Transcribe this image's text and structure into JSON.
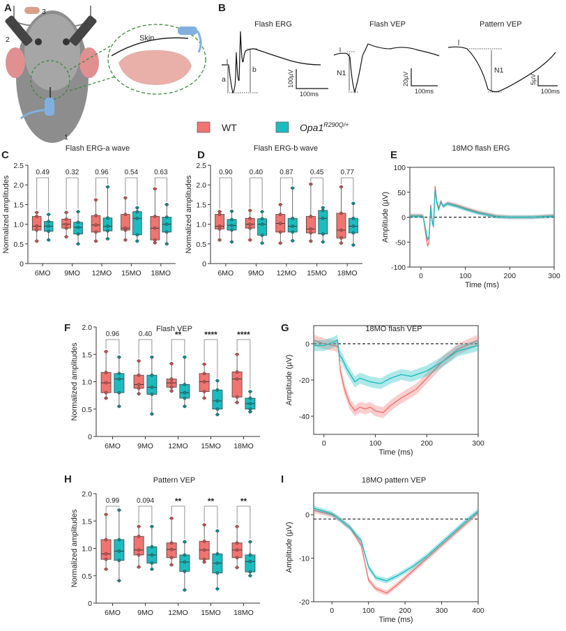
{
  "colors": {
    "wt": "#f07470",
    "opa": "#1bbcbf",
    "wt_dark": "#c0504d",
    "opa_dark": "#0d8a8c"
  },
  "legend": {
    "wt": "WT",
    "opa_base": "Opa1",
    "opa_sup": "R290Q/+"
  },
  "panel_letters": [
    "A",
    "B",
    "C",
    "D",
    "E",
    "F",
    "G",
    "H",
    "I"
  ],
  "panel_a": {
    "labels": [
      "1",
      "2",
      "3"
    ],
    "skin_label": "Skin"
  },
  "panel_b": {
    "traces": [
      {
        "title": "Flash ERG",
        "labels": [
          "a",
          "b"
        ],
        "scale_y": "100µV",
        "scale_x": "100ms"
      },
      {
        "title": "Flash VEP",
        "labels": [
          "N1"
        ],
        "scale_y": "20µV",
        "scale_x": "100ms"
      },
      {
        "title": "Pattern VEP",
        "labels": [
          "N1"
        ],
        "scale_y": "5µV",
        "scale_x": "100ms"
      }
    ]
  },
  "chart_data": [
    {
      "id": "C",
      "type": "box",
      "title": "Flash ERG-a wave",
      "ylabel": "Normalized amplitudes",
      "ylim": [
        0,
        2.5
      ],
      "yticks": [
        "0",
        "0.5",
        "1.0",
        "1.5",
        "2.0",
        "2.5"
      ],
      "categories": [
        "6MO",
        "9MO",
        "12MO",
        "15MO",
        "18MO"
      ],
      "pvalues": [
        "0.49",
        "0.32",
        "0.96",
        "0.54",
        "0.63"
      ],
      "series": [
        {
          "name": "WT",
          "boxes": [
            [
              0.57,
              0.85,
              0.95,
              1.2,
              1.3
            ],
            [
              0.68,
              0.9,
              1.0,
              1.13,
              1.3
            ],
            [
              0.57,
              0.8,
              0.98,
              1.22,
              1.62
            ],
            [
              0.6,
              0.85,
              0.9,
              1.25,
              1.67
            ],
            [
              0.53,
              0.6,
              0.9,
              1.2,
              1.9
            ]
          ]
        },
        {
          "name": "Opa1 R290Q/+",
          "boxes": [
            [
              0.6,
              0.82,
              0.95,
              1.07,
              1.25
            ],
            [
              0.5,
              0.75,
              0.92,
              1.05,
              1.32
            ],
            [
              0.63,
              0.83,
              0.95,
              1.16,
              1.95
            ],
            [
              0.57,
              0.73,
              1.15,
              1.32,
              1.42
            ],
            [
              0.5,
              0.8,
              1.0,
              1.18,
              1.5
            ]
          ]
        }
      ]
    },
    {
      "id": "D",
      "type": "box",
      "title": "Flash ERG-b wave",
      "ylabel": "Normalized amplitudes",
      "ylim": [
        0,
        2.5
      ],
      "yticks": [
        "0",
        "0.5",
        "1.0",
        "1.5",
        "2.0",
        "2.5"
      ],
      "categories": [
        "6MO",
        "9MO",
        "12MO",
        "15MO",
        "18MO"
      ],
      "pvalues": [
        "0.90",
        "0.40",
        "0.87",
        "0.45",
        "0.77"
      ],
      "series": [
        {
          "name": "WT",
          "boxes": [
            [
              0.6,
              0.88,
              0.95,
              1.25,
              1.32
            ],
            [
              0.6,
              0.9,
              1.0,
              1.15,
              1.35
            ],
            [
              0.52,
              0.8,
              1.02,
              1.25,
              1.5
            ],
            [
              0.57,
              0.78,
              0.88,
              1.2,
              2.02
            ],
            [
              0.52,
              0.65,
              0.85,
              1.28,
              1.95
            ]
          ]
        },
        {
          "name": "Opa1 R290Q/+",
          "boxes": [
            [
              0.55,
              0.85,
              0.97,
              1.12,
              1.33
            ],
            [
              0.52,
              0.72,
              1.0,
              1.14,
              1.32
            ],
            [
              0.58,
              0.8,
              0.95,
              1.15,
              1.92
            ],
            [
              0.55,
              0.75,
              1.15,
              1.35,
              1.42
            ],
            [
              0.47,
              0.78,
              0.95,
              1.15,
              1.53
            ]
          ]
        }
      ]
    },
    {
      "id": "E",
      "type": "line",
      "title": "18MO flash ERG",
      "xlabel": "Time (ms)",
      "ylabel": "Amplitude (µV)",
      "xlim": [
        -25,
        300
      ],
      "ylim": [
        -100,
        100
      ],
      "xticks": [
        0,
        100,
        200,
        300
      ],
      "yticks": [
        -100,
        -50,
        0,
        50,
        100
      ],
      "baseline": 0,
      "series": [
        {
          "name": "WT",
          "band": 4,
          "points": [
            [
              -25,
              3
            ],
            [
              0,
              3
            ],
            [
              5,
              2
            ],
            [
              10,
              -30
            ],
            [
              15,
              -58
            ],
            [
              18,
              -50
            ],
            [
              22,
              25
            ],
            [
              25,
              -5
            ],
            [
              28,
              -20
            ],
            [
              32,
              62
            ],
            [
              36,
              30
            ],
            [
              40,
              18
            ],
            [
              45,
              32
            ],
            [
              50,
              22
            ],
            [
              60,
              28
            ],
            [
              80,
              24
            ],
            [
              100,
              18
            ],
            [
              130,
              10
            ],
            [
              170,
              2
            ],
            [
              200,
              0
            ],
            [
              250,
              0
            ],
            [
              300,
              3
            ]
          ]
        },
        {
          "name": "Opa1 R290Q/+",
          "band": 4,
          "points": [
            [
              -25,
              2
            ],
            [
              0,
              2
            ],
            [
              5,
              1
            ],
            [
              10,
              -22
            ],
            [
              15,
              -45
            ],
            [
              18,
              -40
            ],
            [
              22,
              20
            ],
            [
              25,
              -8
            ],
            [
              28,
              -18
            ],
            [
              32,
              55
            ],
            [
              36,
              26
            ],
            [
              40,
              15
            ],
            [
              45,
              30
            ],
            [
              50,
              22
            ],
            [
              60,
              27
            ],
            [
              80,
              22
            ],
            [
              100,
              16
            ],
            [
              130,
              8
            ],
            [
              170,
              1
            ],
            [
              200,
              0
            ],
            [
              250,
              0
            ],
            [
              300,
              2
            ]
          ]
        }
      ]
    },
    {
      "id": "F",
      "type": "box",
      "title": "Flash VEP",
      "ylabel": "Normalized amplitudes",
      "ylim": [
        0,
        2.0
      ],
      "yticks": [
        "0",
        "0.5",
        "1.0",
        "1.5",
        "2.0"
      ],
      "categories": [
        "6MO",
        "9MO",
        "12MO",
        "15MO",
        "18MO"
      ],
      "pvalues": [
        "0.96",
        "0.40",
        "**",
        "****",
        "****"
      ],
      "series": [
        {
          "name": "WT",
          "boxes": [
            [
              0.7,
              0.8,
              0.98,
              1.17,
              1.55
            ],
            [
              0.78,
              0.88,
              0.95,
              1.12,
              1.38
            ],
            [
              0.83,
              0.9,
              0.98,
              1.05,
              1.33
            ],
            [
              0.7,
              0.82,
              1.0,
              1.15,
              1.32
            ],
            [
              0.62,
              0.72,
              1.05,
              1.18,
              1.5
            ]
          ]
        },
        {
          "name": "Opa1 R290Q/+",
          "boxes": [
            [
              0.55,
              0.8,
              1.05,
              1.15,
              1.45
            ],
            [
              0.41,
              0.77,
              0.9,
              1.12,
              1.45
            ],
            [
              0.55,
              0.7,
              0.8,
              0.95,
              1.45
            ],
            [
              0.4,
              0.5,
              0.65,
              0.85,
              1.02
            ],
            [
              0.45,
              0.5,
              0.6,
              0.7,
              0.82
            ]
          ]
        }
      ]
    },
    {
      "id": "G",
      "type": "line",
      "title": "18MO flash VEP",
      "xlabel": "Time (ms)",
      "ylabel": "Amplitude (µV)",
      "xlim": [
        -20,
        300
      ],
      "ylim": [
        -50,
        10
      ],
      "xticks": [
        0,
        100,
        200,
        300
      ],
      "yticks": [
        -40,
        -20,
        0
      ],
      "baseline": 0,
      "series": [
        {
          "name": "WT",
          "band": 3,
          "points": [
            [
              -20,
              2
            ],
            [
              0,
              0
            ],
            [
              20,
              -1
            ],
            [
              28,
              -2
            ],
            [
              32,
              -15
            ],
            [
              40,
              -25
            ],
            [
              50,
              -33
            ],
            [
              60,
              -37
            ],
            [
              70,
              -35
            ],
            [
              80,
              -36
            ],
            [
              90,
              -35
            ],
            [
              100,
              -37
            ],
            [
              115,
              -38
            ],
            [
              130,
              -34
            ],
            [
              150,
              -30
            ],
            [
              180,
              -25
            ],
            [
              200,
              -19
            ],
            [
              230,
              -10
            ],
            [
              260,
              -3
            ],
            [
              300,
              2
            ]
          ]
        },
        {
          "name": "Opa1 R290Q/+",
          "band": 3,
          "points": [
            [
              -20,
              -1
            ],
            [
              0,
              -1
            ],
            [
              20,
              1
            ],
            [
              26,
              2
            ],
            [
              30,
              -6
            ],
            [
              35,
              -8
            ],
            [
              45,
              -14
            ],
            [
              60,
              -21
            ],
            [
              70,
              -19
            ],
            [
              90,
              -21
            ],
            [
              110,
              -22
            ],
            [
              130,
              -19
            ],
            [
              150,
              -17
            ],
            [
              170,
              -18
            ],
            [
              200,
              -15
            ],
            [
              230,
              -10
            ],
            [
              260,
              -4
            ],
            [
              300,
              -1
            ]
          ]
        }
      ]
    },
    {
      "id": "H",
      "type": "box",
      "title": "Pattern VEP",
      "ylabel": "Normalized amplitudes",
      "ylim": [
        0,
        2.0
      ],
      "yticks": [
        "0",
        "0.5",
        "1.0",
        "1.5",
        "2.0"
      ],
      "categories": [
        "6MO",
        "9MO",
        "12MO",
        "15MO",
        "18MO"
      ],
      "pvalues": [
        "0.99",
        "0.094",
        "**",
        "**",
        "**"
      ],
      "series": [
        {
          "name": "WT",
          "boxes": [
            [
              0.62,
              0.8,
              0.9,
              1.16,
              1.62
            ],
            [
              0.66,
              0.88,
              0.97,
              1.22,
              1.4
            ],
            [
              0.7,
              0.83,
              0.98,
              1.1,
              1.55
            ],
            [
              0.75,
              0.8,
              0.97,
              1.13,
              1.43
            ],
            [
              0.65,
              0.83,
              0.97,
              1.1,
              1.4
            ]
          ]
        },
        {
          "name": "Opa1 R290Q/+",
          "boxes": [
            [
              0.41,
              0.78,
              0.95,
              1.16,
              1.7
            ],
            [
              0.62,
              0.73,
              0.88,
              1.03,
              1.4
            ],
            [
              0.24,
              0.58,
              0.75,
              0.88,
              1.12
            ],
            [
              0.26,
              0.55,
              0.73,
              0.9,
              1.32
            ],
            [
              0.5,
              0.57,
              0.76,
              0.88,
              1.12
            ]
          ]
        }
      ]
    },
    {
      "id": "I",
      "type": "line",
      "title": "18MO pattern VEP",
      "xlabel": "Time (ms)",
      "ylabel": "Amplitude (µV)",
      "xlim": [
        -50,
        400
      ],
      "ylim": [
        -20,
        5
      ],
      "xticks": [
        0,
        100,
        200,
        300,
        400
      ],
      "yticks": [
        -20,
        -10,
        0
      ],
      "baseline": -1,
      "series": [
        {
          "name": "WT",
          "band": 0.6,
          "points": [
            [
              -50,
              1
            ],
            [
              0,
              0
            ],
            [
              20,
              -1
            ],
            [
              50,
              -3
            ],
            [
              80,
              -7
            ],
            [
              100,
              -15
            ],
            [
              120,
              -17
            ],
            [
              150,
              -18
            ],
            [
              180,
              -16
            ],
            [
              220,
              -13
            ],
            [
              260,
              -10
            ],
            [
              300,
              -7
            ],
            [
              340,
              -4
            ],
            [
              380,
              -1
            ],
            [
              400,
              0.5
            ]
          ]
        },
        {
          "name": "Opa1 R290Q/+",
          "band": 0.6,
          "points": [
            [
              -50,
              1.5
            ],
            [
              0,
              0.2
            ],
            [
              20,
              -1
            ],
            [
              50,
              -3
            ],
            [
              80,
              -6
            ],
            [
              100,
              -12
            ],
            [
              120,
              -14.5
            ],
            [
              150,
              -15.2
            ],
            [
              180,
              -14
            ],
            [
              220,
              -12
            ],
            [
              260,
              -9.5
            ],
            [
              300,
              -6.5
            ],
            [
              340,
              -3.5
            ],
            [
              380,
              -0.5
            ],
            [
              400,
              0.8
            ]
          ]
        }
      ]
    }
  ]
}
